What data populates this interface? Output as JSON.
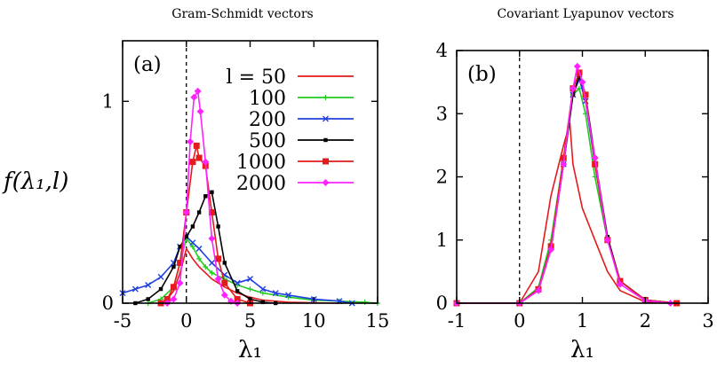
{
  "chart_data": [
    {
      "type": "line",
      "title": "Gram-Schmidt vectors",
      "panel_label": "(a)",
      "xlabel": "λ₁",
      "ylabel": "f(λ₁,l)",
      "xlim": [
        -5,
        15
      ],
      "ylim": [
        0,
        1.3
      ],
      "xticks": [
        -5,
        0,
        5,
        10,
        15
      ],
      "yticks": [
        0,
        1
      ],
      "legend_position": "top-right",
      "legend_title": "l =",
      "series": [
        {
          "name": "50",
          "color": "#e41a1c",
          "marker": "none",
          "x": [
            -2,
            -1.5,
            -1,
            -0.5,
            0,
            0.5,
            1,
            1.5,
            2,
            3,
            4,
            5,
            6,
            8,
            10,
            12
          ],
          "y": [
            0.0,
            0.02,
            0.06,
            0.15,
            0.27,
            0.22,
            0.18,
            0.15,
            0.12,
            0.08,
            0.05,
            0.03,
            0.015,
            0.005,
            0.002,
            0.0
          ]
        },
        {
          "name": "100",
          "color": "#22cc22",
          "marker": "plus",
          "x": [
            -3,
            -2,
            -1,
            -0.5,
            0,
            0.5,
            1,
            1.5,
            2,
            3,
            4,
            5,
            6,
            8,
            10,
            12,
            14,
            15
          ],
          "y": [
            0.0,
            0.02,
            0.08,
            0.2,
            0.32,
            0.28,
            0.22,
            0.18,
            0.15,
            0.12,
            0.09,
            0.07,
            0.05,
            0.03,
            0.015,
            0.01,
            0.005,
            0.0
          ]
        },
        {
          "name": "200",
          "color": "#1f3fe0",
          "marker": "x",
          "x": [
            -5,
            -4,
            -3,
            -2,
            -1,
            -0.5,
            0,
            0.5,
            1,
            2,
            3,
            4,
            5,
            6,
            7,
            8,
            10,
            12,
            13
          ],
          "y": [
            0.05,
            0.07,
            0.09,
            0.13,
            0.2,
            0.28,
            0.33,
            0.3,
            0.27,
            0.2,
            0.14,
            0.1,
            0.12,
            0.07,
            0.05,
            0.04,
            0.02,
            0.01,
            0.0
          ]
        },
        {
          "name": "500",
          "color": "#000000",
          "marker": "square",
          "x": [
            -4,
            -3,
            -2,
            -1,
            -0.5,
            0,
            0.5,
            1,
            1.5,
            2,
            2.5,
            3,
            4,
            5,
            6,
            7
          ],
          "y": [
            0.0,
            0.02,
            0.07,
            0.18,
            0.28,
            0.33,
            0.38,
            0.45,
            0.53,
            0.55,
            0.38,
            0.2,
            0.06,
            0.02,
            0.005,
            0.0
          ]
        },
        {
          "name": "1000",
          "color": "#e41a1c",
          "marker": "square-open",
          "x": [
            -2,
            -1.5,
            -1,
            -0.5,
            0,
            0.5,
            0.8,
            1,
            1.5,
            2,
            2.5,
            3,
            4,
            5
          ],
          "y": [
            0.0,
            0.02,
            0.08,
            0.2,
            0.45,
            0.7,
            0.78,
            0.72,
            0.68,
            0.45,
            0.22,
            0.1,
            0.02,
            0.0
          ]
        },
        {
          "name": "2000",
          "color": "#ff22ff",
          "marker": "diamond",
          "x": [
            -1.5,
            -1,
            -0.5,
            0,
            0.3,
            0.6,
            0.9,
            1.1,
            1.5,
            2,
            2.5,
            3,
            3.5,
            4
          ],
          "y": [
            0.0,
            0.02,
            0.1,
            0.45,
            0.8,
            1.02,
            1.05,
            0.95,
            0.7,
            0.32,
            0.12,
            0.04,
            0.01,
            0.0
          ]
        }
      ]
    },
    {
      "type": "line",
      "title": "Covariant Lyapunov vectors",
      "panel_label": "(b)",
      "xlabel": "λ₁",
      "ylabel": "",
      "xlim": [
        -1,
        3
      ],
      "ylim": [
        0,
        4
      ],
      "xticks": [
        -1,
        0,
        1,
        2,
        3
      ],
      "yticks": [
        0,
        1,
        2,
        3,
        4
      ],
      "series": [
        {
          "name": "50",
          "color": "#e41a1c",
          "marker": "none",
          "x": [
            -1,
            0,
            0.3,
            0.5,
            0.7,
            0.8,
            0.85,
            1.0,
            1.2,
            1.4,
            1.6,
            2.0,
            2.5
          ],
          "y": [
            0.0,
            0.0,
            0.5,
            1.7,
            2.5,
            2.85,
            2.2,
            1.5,
            1.0,
            0.5,
            0.2,
            0.02,
            0.0
          ]
        },
        {
          "name": "100",
          "color": "#22cc22",
          "marker": "plus",
          "x": [
            -1,
            0,
            0.3,
            0.5,
            0.7,
            0.85,
            0.95,
            1.05,
            1.2,
            1.4,
            1.6,
            2.0,
            2.5
          ],
          "y": [
            0.0,
            0.0,
            0.25,
            1.0,
            2.3,
            3.3,
            3.4,
            3.0,
            2.0,
            1.0,
            0.35,
            0.05,
            0.0
          ]
        },
        {
          "name": "200",
          "color": "#1f3fe0",
          "marker": "x",
          "x": [
            -1,
            0,
            0.3,
            0.5,
            0.7,
            0.85,
            0.95,
            1.05,
            1.2,
            1.4,
            1.6,
            2.0,
            2.5
          ],
          "y": [
            0.0,
            0.0,
            0.22,
            0.9,
            2.2,
            3.3,
            3.55,
            3.2,
            2.2,
            1.0,
            0.35,
            0.05,
            0.0
          ]
        },
        {
          "name": "500",
          "color": "#000000",
          "marker": "square",
          "x": [
            -1,
            0,
            0.3,
            0.5,
            0.7,
            0.85,
            0.95,
            1.05,
            1.2,
            1.4,
            1.6,
            2.0,
            2.5
          ],
          "y": [
            0.0,
            0.0,
            0.2,
            0.85,
            2.2,
            3.3,
            3.6,
            3.3,
            2.3,
            1.05,
            0.35,
            0.05,
            0.0
          ]
        },
        {
          "name": "1000",
          "color": "#e41a1c",
          "marker": "square-open",
          "x": [
            -1,
            0,
            0.3,
            0.5,
            0.7,
            0.85,
            0.95,
            1.05,
            1.2,
            1.4,
            1.6,
            2.0,
            2.5
          ],
          "y": [
            0.0,
            0.0,
            0.22,
            0.9,
            2.3,
            3.4,
            3.65,
            3.3,
            2.2,
            1.0,
            0.35,
            0.05,
            0.0
          ]
        },
        {
          "name": "2000",
          "color": "#ff22ff",
          "marker": "diamond",
          "x": [
            -1,
            0,
            0.3,
            0.5,
            0.7,
            0.85,
            0.92,
            1.0,
            1.2,
            1.4,
            1.6,
            2.0,
            2.4
          ],
          "y": [
            0.0,
            0.0,
            0.2,
            0.85,
            2.2,
            3.4,
            3.75,
            3.5,
            2.3,
            1.0,
            0.3,
            0.04,
            0.0
          ]
        }
      ]
    }
  ]
}
